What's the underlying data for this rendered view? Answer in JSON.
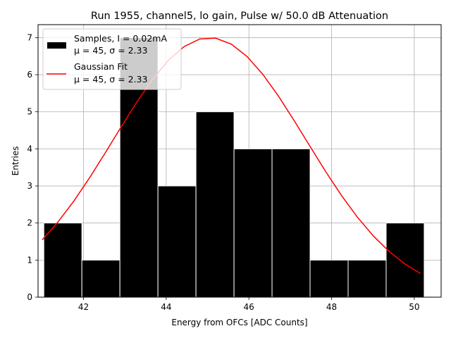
{
  "chart_data": {
    "type": "bar",
    "title": "Run 1955, channel5, lo gain, Pulse w/ 50.0 dB Attenuation",
    "xlabel": "Energy from OFCs [ADC Counts]",
    "ylabel": "Entries",
    "xlim": [
      40.9,
      50.65
    ],
    "ylim": [
      0,
      7.35
    ],
    "xticks": [
      42,
      44,
      46,
      48,
      50
    ],
    "yticks": [
      0,
      1,
      2,
      3,
      4,
      5,
      6,
      7
    ],
    "grid": true,
    "legend_location": "top-left",
    "bins": [
      {
        "x0": 41.04,
        "x1": 41.96,
        "count": 2
      },
      {
        "x0": 41.96,
        "x1": 42.88,
        "count": 1
      },
      {
        "x0": 42.88,
        "x1": 43.8,
        "count": 7
      },
      {
        "x0": 43.8,
        "x1": 44.72,
        "count": 3
      },
      {
        "x0": 44.72,
        "x1": 45.64,
        "count": 5
      },
      {
        "x0": 45.64,
        "x1": 46.56,
        "count": 4
      },
      {
        "x0": 46.56,
        "x1": 47.48,
        "count": 4
      },
      {
        "x0": 47.48,
        "x1": 48.4,
        "count": 1
      },
      {
        "x0": 48.4,
        "x1": 49.32,
        "count": 1
      },
      {
        "x0": 49.32,
        "x1": 50.24,
        "count": 2
      }
    ],
    "series": [
      {
        "name": "Samples, I = 0.02mA",
        "stats": "μ = 45, σ = 2.33",
        "kind": "histogram",
        "color": "#000000"
      },
      {
        "name": "Gaussian Fit",
        "stats": "μ = 45, σ = 2.33",
        "kind": "line",
        "color": "#ff0000",
        "fit": {
          "amplitude": 7.0,
          "mean": 45.05,
          "sigma": 2.33,
          "x_start": 41.0,
          "x_end": 50.15
        }
      }
    ]
  }
}
